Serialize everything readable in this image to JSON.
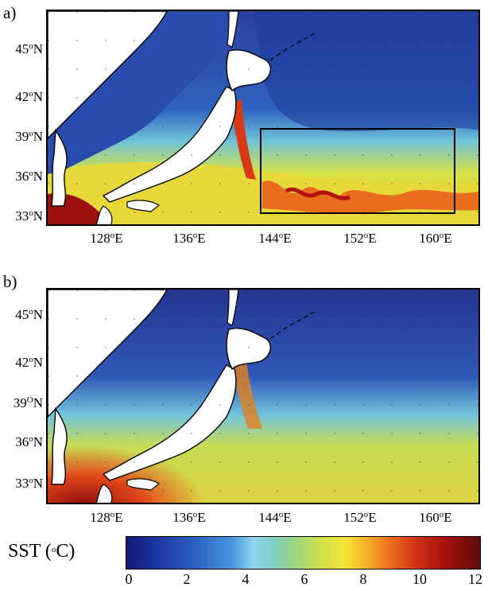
{
  "panels": [
    {
      "label": "a)",
      "kind": "instantaneous"
    },
    {
      "label": "b)",
      "kind": "smoothed"
    }
  ],
  "lat_labels": [
    {
      "deg": "45",
      "sup": "o",
      "hemi": "N"
    },
    {
      "deg": "42",
      "sup": "o",
      "hemi": "N"
    },
    {
      "deg": "39",
      "sup": "o",
      "hemi": "N"
    },
    {
      "deg": "36",
      "sup": "o",
      "hemi": "N"
    },
    {
      "deg": "33",
      "sup": "o",
      "hemi": "N"
    }
  ],
  "lat_labels_b": [
    {
      "deg": "45",
      "sup": "o",
      "hemi": "N"
    },
    {
      "deg": "42",
      "sup": "o",
      "hemi": "N"
    },
    {
      "deg": "39",
      "sup": "O",
      "hemi": "N"
    },
    {
      "deg": "36",
      "sup": "o",
      "hemi": "N"
    },
    {
      "deg": "33",
      "sup": "o",
      "hemi": "N"
    }
  ],
  "lon_labels": [
    {
      "deg": "128",
      "sup": "o",
      "hemi": "E"
    },
    {
      "deg": "136",
      "sup": "o",
      "hemi": "E"
    },
    {
      "deg": "144",
      "sup": "o",
      "hemi": "E"
    },
    {
      "deg": "152",
      "sup": "o",
      "hemi": "E"
    },
    {
      "deg": "160",
      "sup": "o",
      "hemi": "E"
    }
  ],
  "colorbar": {
    "title_main": "SST (",
    "title_sup": "o",
    "title_end": "C)",
    "ticks": [
      "0",
      "2",
      "4",
      "6",
      "8",
      "10",
      "12"
    ]
  },
  "highlight_box": {
    "present": true,
    "panel": "a)"
  }
}
